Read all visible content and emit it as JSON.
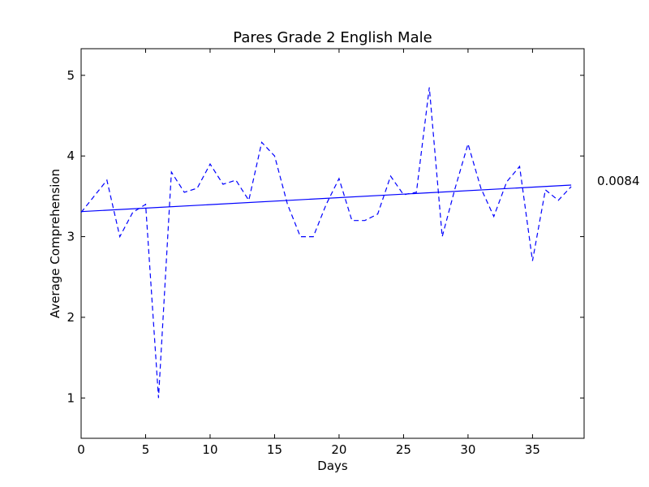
{
  "chart_data": {
    "type": "line",
    "title": "Pares Grade 2 English Male",
    "xlabel": "Days",
    "ylabel": "Average Comprehension",
    "xlim": [
      0,
      39
    ],
    "ylim": [
      0.5,
      5.33
    ],
    "xticks": [
      "0",
      "5",
      "10",
      "15",
      "20",
      "25",
      "30",
      "35"
    ],
    "yticks": [
      "1",
      "2",
      "3",
      "4",
      "5"
    ],
    "grid": false,
    "annotation": "0.0084",
    "colors": {
      "series": "#0000ff",
      "axes": "#000000"
    },
    "series": [
      {
        "style": "dashed",
        "x": [
          0,
          1,
          2,
          3,
          4,
          5,
          6,
          7,
          8,
          9,
          10,
          11,
          12,
          13,
          14,
          15,
          16,
          17,
          18,
          19,
          20,
          21,
          22,
          23,
          24,
          25,
          26,
          27,
          28,
          29,
          30,
          31,
          32,
          33,
          34,
          35,
          36,
          37,
          38
        ],
        "y": [
          3.3,
          3.5,
          3.7,
          3.0,
          3.3,
          3.4,
          1.0,
          3.8,
          3.55,
          3.6,
          3.9,
          3.65,
          3.7,
          3.45,
          4.17,
          4.0,
          3.4,
          3.0,
          3.0,
          3.4,
          3.72,
          3.2,
          3.2,
          3.28,
          3.75,
          3.52,
          3.55,
          4.85,
          3.0,
          3.6,
          4.15,
          3.6,
          3.25,
          3.68,
          3.87,
          2.7,
          3.58,
          3.45,
          3.62
        ]
      },
      {
        "style": "solid",
        "x": [
          0,
          38
        ],
        "y": [
          3.31,
          3.64
        ]
      }
    ]
  }
}
